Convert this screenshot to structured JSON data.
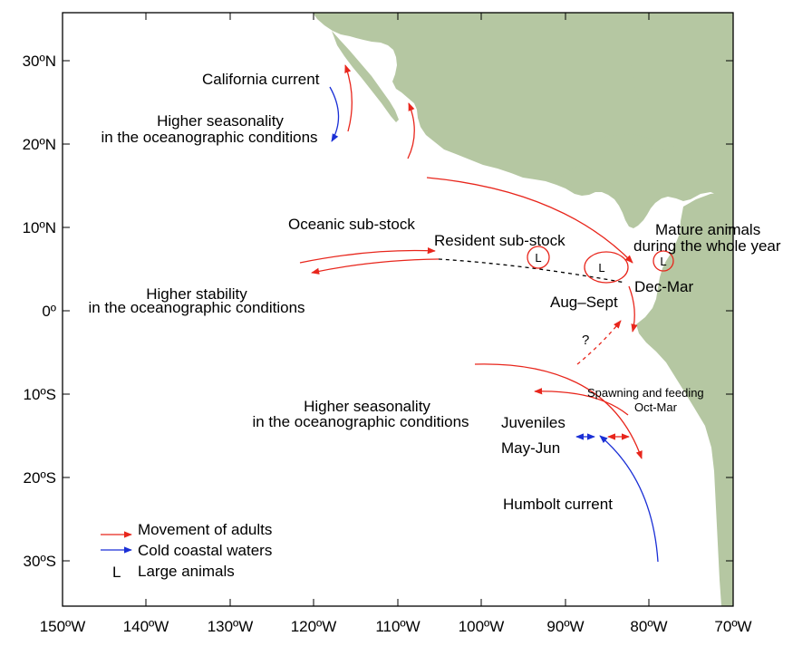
{
  "axes": {
    "lat_labels": [
      "30ºN",
      "20ºN",
      "10ºN",
      "0º",
      "10ºS",
      "20ºS",
      "30ºS"
    ],
    "lon_labels": [
      "150ºW",
      "140ºW",
      "130ºW",
      "120ºW",
      "110ºW",
      "100ºW",
      "90ºW",
      "80ºW",
      "70ºW"
    ]
  },
  "labels": {
    "california_current": "California current",
    "higher_seasonality_north_1": "Higher seasonality",
    "higher_seasonality_north_2": "in the oceanographic conditions",
    "oceanic_substock": "Oceanic sub-stock",
    "resident_substock": "Resident sub-stock",
    "mature_animals_1": "Mature animals",
    "mature_animals_2": "during the whole year",
    "higher_stability_1": "Higher stability",
    "higher_stability_2": "in the oceanographic conditions",
    "dec_mar": "Dec-Mar",
    "aug_sept": "Aug–Sept",
    "question": "?",
    "spawning_1": "Spawning and feeding",
    "spawning_2": "Oct-Mar",
    "higher_seasonality_south_1": "Higher seasonality",
    "higher_seasonality_south_2": "in the oceanographic conditions",
    "juveniles": "Juveniles",
    "may_jun": "May-Jun",
    "humbolt_current": "Humbolt current",
    "large_marker": "L"
  },
  "legend": {
    "items": [
      {
        "label": "Movement of adults",
        "color": "#e8261c",
        "symbol": "red-arrow"
      },
      {
        "label": "Cold coastal waters",
        "color": "#1a2fd6",
        "symbol": "blue-arrow"
      },
      {
        "label": "Large animals",
        "color": "#000000",
        "symbol": "L"
      }
    ]
  },
  "colors": {
    "land": "#b5c7a2",
    "adult_movement": "#e8261c",
    "cold_waters": "#1a2fd6"
  }
}
